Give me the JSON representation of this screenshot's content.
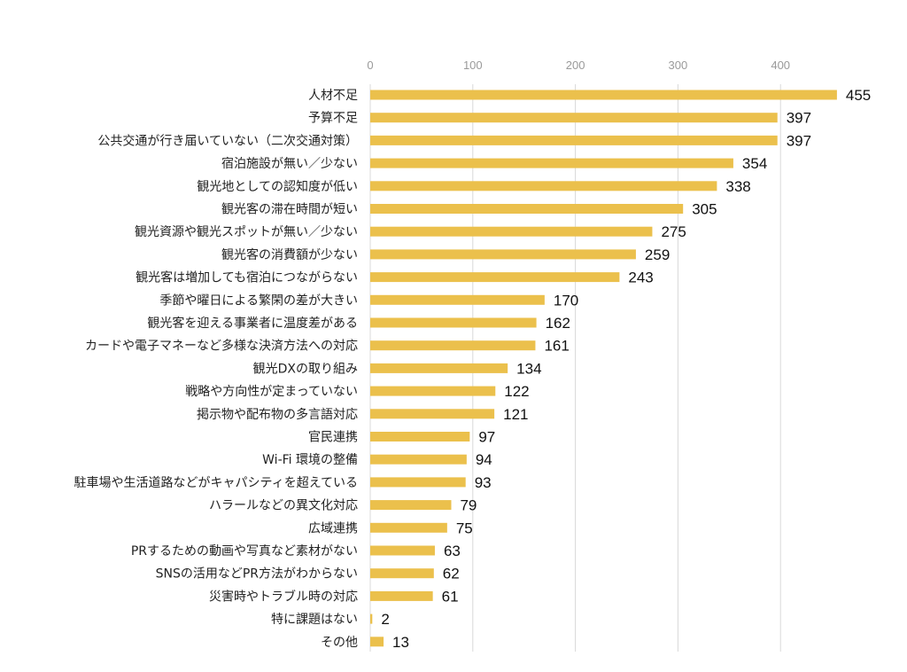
{
  "chart_data": {
    "type": "bar",
    "orientation": "horizontal",
    "title": "",
    "xlabel": "",
    "ylabel": "",
    "xlim": [
      0,
      460
    ],
    "ticks": [
      0,
      100,
      200,
      300,
      400
    ],
    "tick_labels": [
      "0",
      "100",
      "200",
      "300",
      "400"
    ],
    "grid": true,
    "bar_color": "#ebc04c",
    "categories": [
      "人材不足",
      "予算不足",
      "公共交通が行き届いていない（二次交通対策）",
      "宿泊施設が無い／少ない",
      "観光地としての認知度が低い",
      "観光客の滞在時間が短い",
      "観光資源や観光スポットが無い／少ない",
      "観光客の消費額が少ない",
      "観光客は増加しても宿泊につながらない",
      "季節や曜日による繁閑の差が大きい",
      "観光客を迎える事業者に温度差がある",
      "カードや電子マネーなど多様な決済方法への対応",
      "観光DXの取り組み",
      "戦略や方向性が定まっていない",
      "掲示物や配布物の多言語対応",
      "官民連携",
      "Wi-Fi 環境の整備",
      "駐車場や生活道路などがキャパシティを超えている",
      "ハラールなどの異文化対応",
      "広域連携",
      "PRするための動画や写真など素材がない",
      "SNSの活用などPR方法がわからない",
      "災害時やトラブル時の対応",
      "特に課題はない",
      "その他"
    ],
    "values": [
      455,
      397,
      397,
      354,
      338,
      305,
      275,
      259,
      243,
      170,
      162,
      161,
      134,
      122,
      121,
      97,
      94,
      93,
      79,
      75,
      63,
      62,
      61,
      2,
      13
    ]
  }
}
